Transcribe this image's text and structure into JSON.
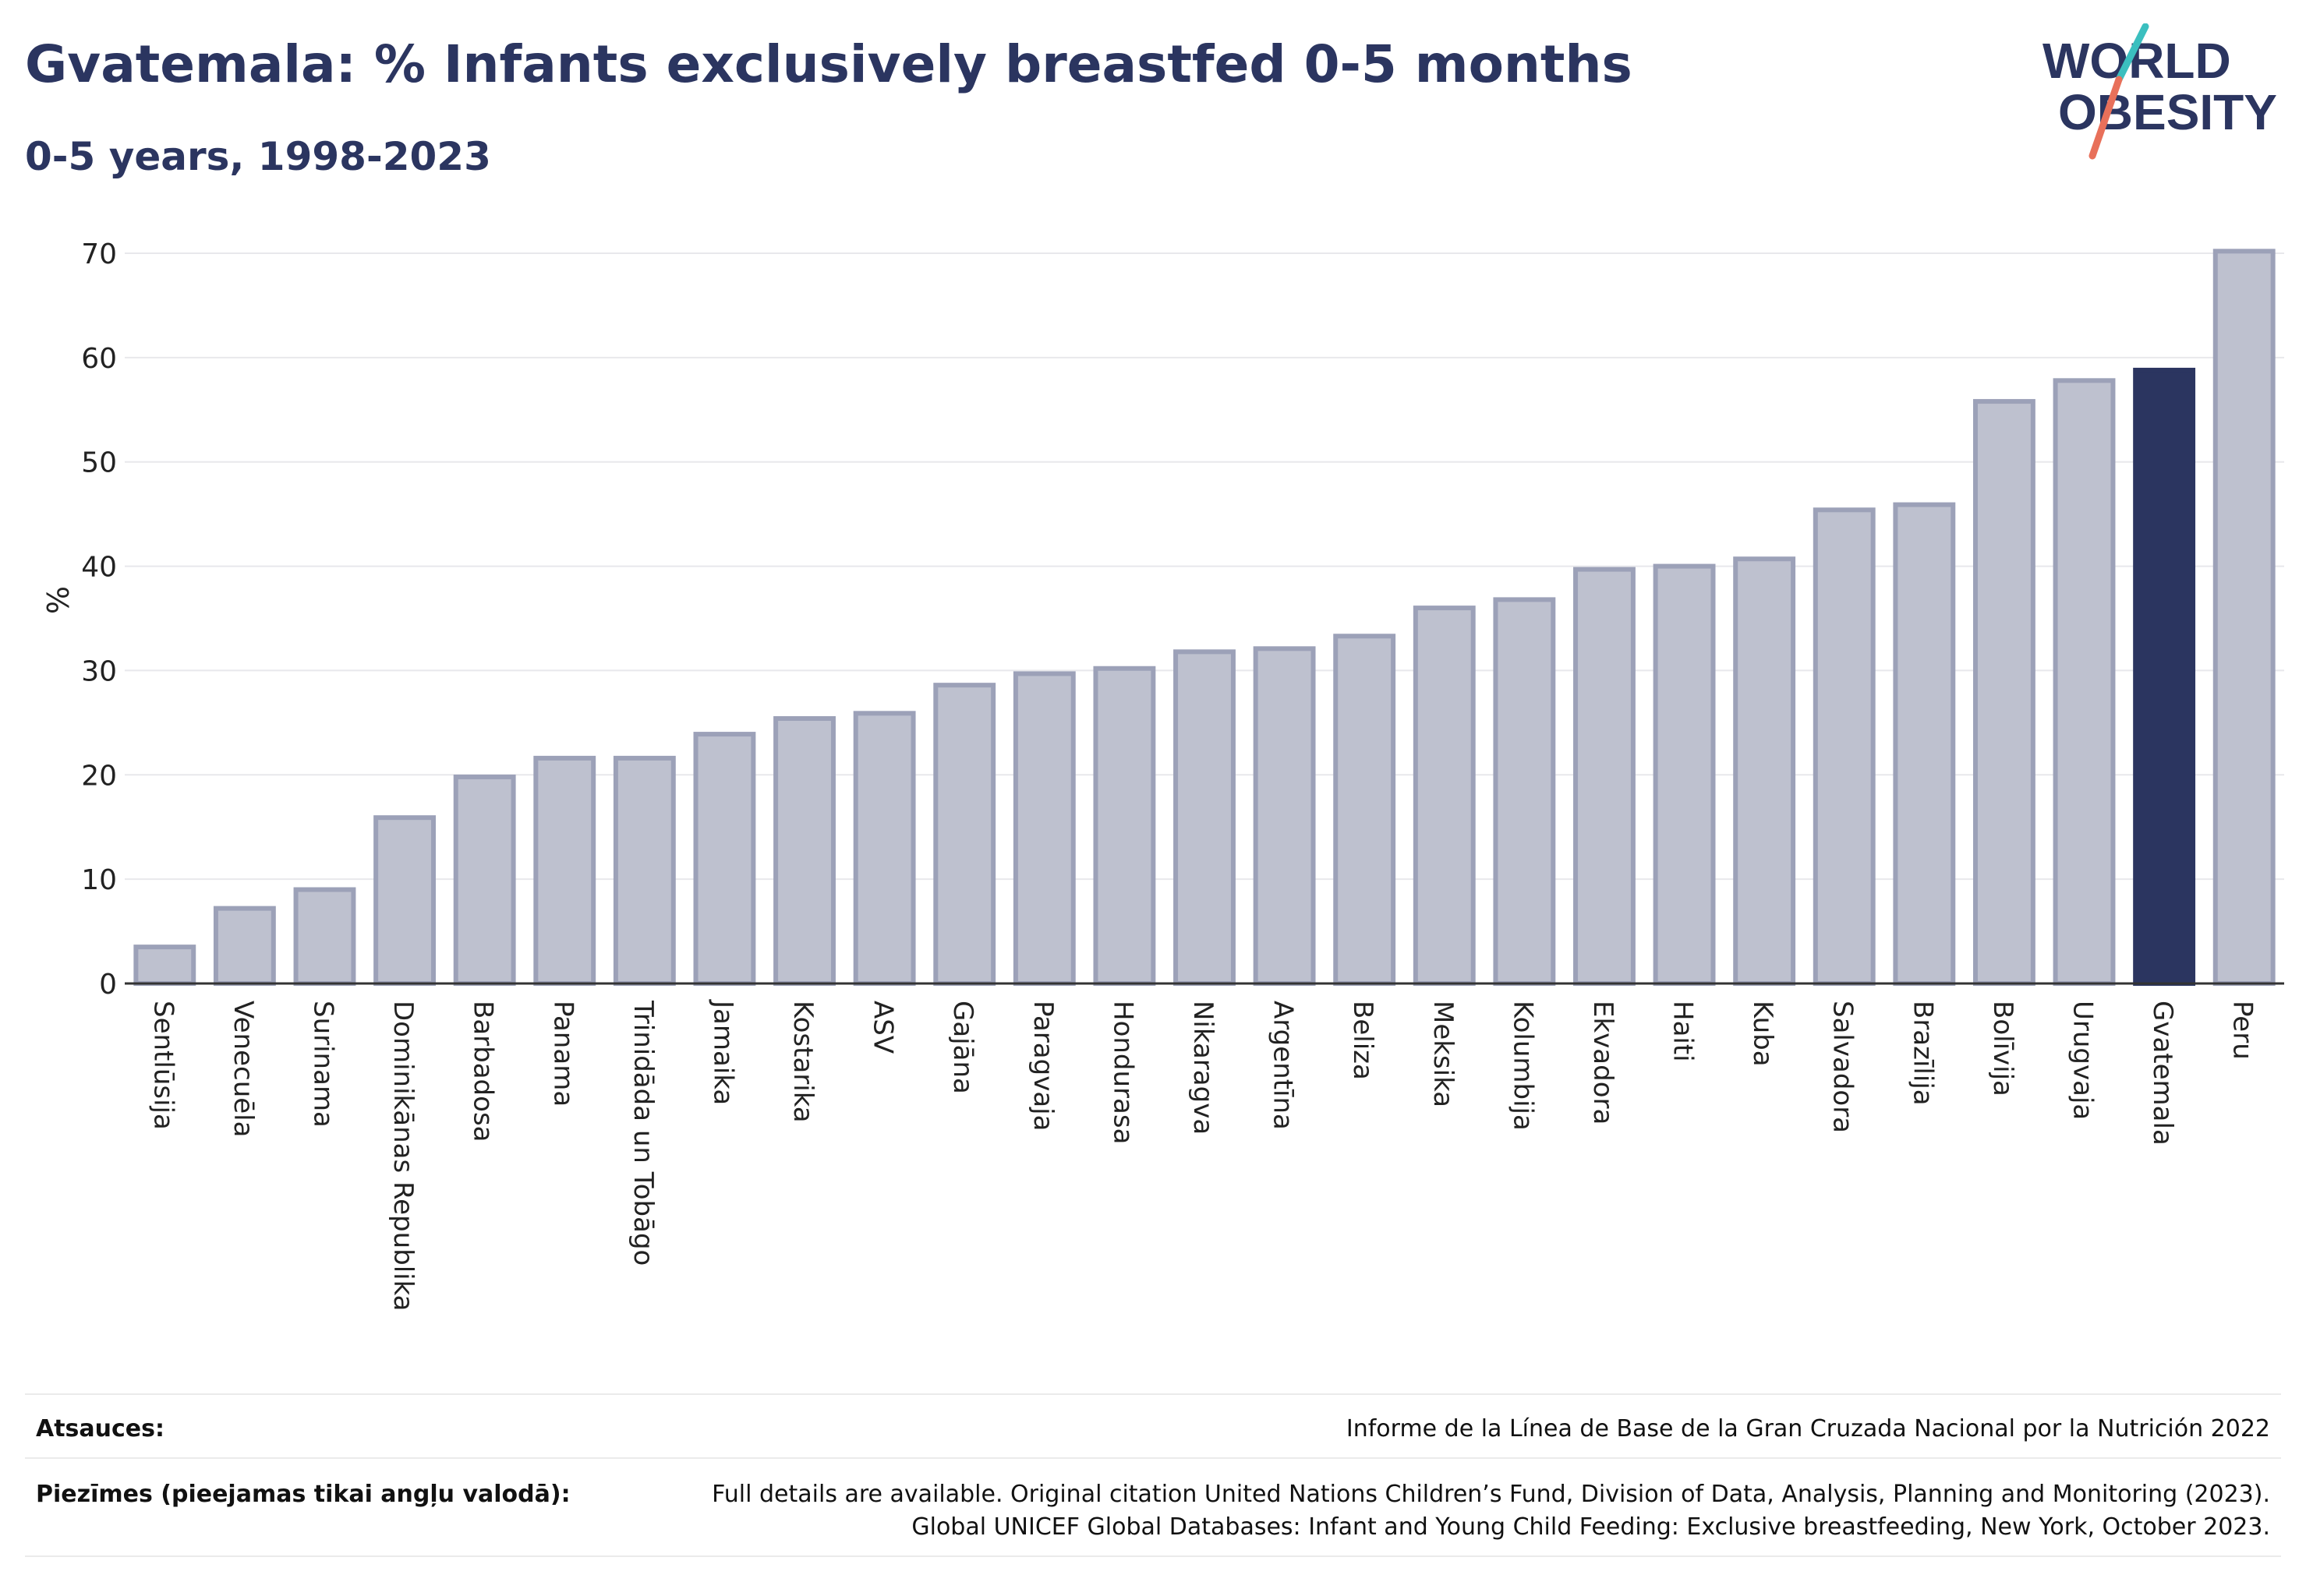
{
  "header": {
    "title": "Gvatemala: % Infants exclusively breastfed 0-5 months",
    "subtitle": "0-5 years, 1998-2023"
  },
  "logo": {
    "line1": "WORLD",
    "line2": "OBESITY",
    "colors": {
      "text": "#2b3560",
      "accent_teal": "#3bbfbf",
      "accent_coral": "#e8705a"
    }
  },
  "chart_data": {
    "type": "bar",
    "ylabel": "%",
    "xlabel": "",
    "ylim": [
      0,
      70
    ],
    "yticks": [
      0,
      10,
      20,
      30,
      40,
      50,
      60,
      70
    ],
    "grid": true,
    "highlight": "Gvatemala",
    "colors": {
      "bar": "#bec1cf",
      "bar_edge": "#9ca1b8",
      "highlight": "#2b3560",
      "grid": "#e8e8ec",
      "axis": "#333333"
    },
    "categories": [
      "Sentlūsija",
      "Venecuēla",
      "Surinama",
      "Dominikānas Republika",
      "Barbadosa",
      "Panama",
      "Trinidāda un Tobāgo",
      "Jamaika",
      "Kostarika",
      "ASV",
      "Gajāna",
      "Paragvaja",
      "Hondurasa",
      "Nikaragva",
      "Argentīna",
      "Beliza",
      "Meksika",
      "Kolumbija",
      "Ekvadora",
      "Haiti",
      "Kuba",
      "Salvadora",
      "Brazīlija",
      "Bolīvija",
      "Urugvaja",
      "Gvatemala",
      "Peru"
    ],
    "values": [
      3.5,
      7.2,
      9.0,
      15.9,
      19.8,
      21.6,
      21.6,
      23.9,
      25.4,
      25.9,
      28.6,
      29.7,
      30.2,
      31.8,
      32.1,
      33.3,
      36.0,
      36.8,
      39.7,
      40.0,
      40.7,
      45.4,
      45.9,
      55.8,
      57.8,
      58.8,
      70.2
    ]
  },
  "footer": {
    "sources_label": "Atsauces:",
    "sources_text": "Informe de la Línea de Base de la Gran Cruzada Nacional por la Nutrición 2022",
    "notes_label": "Piezīmes (pieejamas tikai angļu valodā):",
    "notes_line1": "Full details are available. Original citation United Nations Children’s Fund, Division of Data, Analysis, Planning and Monitoring (2023).",
    "notes_line2": "Global UNICEF Global Databases: Infant and Young Child Feeding: Exclusive breastfeeding, New York, October 2023."
  }
}
